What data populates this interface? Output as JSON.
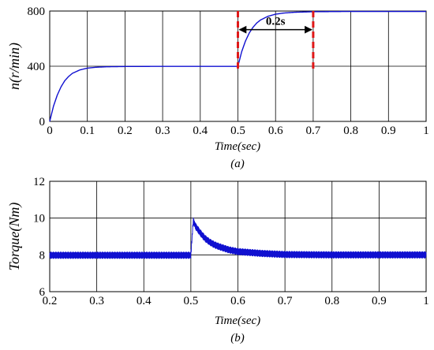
{
  "chart_data": [
    {
      "type": "line",
      "panel_label": "(a)",
      "xlabel": "Time(sec)",
      "ylabel": "n(r/min)",
      "xlim": [
        0,
        1
      ],
      "ylim": [
        0,
        800
      ],
      "xticks": [
        "0",
        "0.1",
        "0.2",
        "0.3",
        "0.4",
        "0.5",
        "0.6",
        "0.7",
        "0.8",
        "0.9",
        "1"
      ],
      "yticks": [
        "0",
        "400",
        "800"
      ],
      "grid": true,
      "series": [
        {
          "color": "#1010d0",
          "x": [
            0,
            0.01,
            0.02,
            0.03,
            0.04,
            0.05,
            0.06,
            0.08,
            0.1,
            0.12,
            0.15,
            0.2,
            0.3,
            0.4,
            0.5,
            0.51,
            0.52,
            0.53,
            0.54,
            0.55,
            0.56,
            0.58,
            0.6,
            0.62,
            0.65,
            0.7,
            0.8,
            0.9,
            1.0
          ],
          "y": [
            0,
            110,
            190,
            250,
            295,
            325,
            348,
            373,
            386,
            392,
            396,
            398,
            399,
            399,
            399,
            505,
            582,
            640,
            682,
            713,
            735,
            762,
            777,
            785,
            791,
            795,
            797,
            797,
            797
          ]
        }
      ],
      "annotations": [
        {
          "type": "vline",
          "x": 0.5,
          "color": "#e01818",
          "style": "dashed"
        },
        {
          "type": "vline",
          "x": 0.7,
          "color": "#e01818",
          "style": "dashed"
        },
        {
          "type": "double-arrow",
          "x_from": 0.5,
          "x_to": 0.7,
          "y": 665,
          "text": "0.2s"
        }
      ]
    },
    {
      "type": "line",
      "panel_label": "(b)",
      "xlabel": "Time(sec)",
      "ylabel": "Torque(Nm)",
      "xlim": [
        0.2,
        1
      ],
      "ylim": [
        6,
        12
      ],
      "xticks": [
        "0.2",
        "0.3",
        "0.4",
        "0.5",
        "0.6",
        "0.7",
        "0.8",
        "0.9",
        "1"
      ],
      "yticks": [
        "6",
        "8",
        "10",
        "12"
      ],
      "grid": true,
      "series": [
        {
          "color": "#1010d0",
          "ripple": 0.18,
          "x": [
            0.2,
            0.3,
            0.4,
            0.499,
            0.5,
            0.505,
            0.51,
            0.52,
            0.53,
            0.54,
            0.55,
            0.56,
            0.58,
            0.6,
            0.65,
            0.7,
            0.8,
            0.9,
            1.0
          ],
          "y": [
            7.98,
            7.98,
            7.98,
            7.98,
            8.0,
            9.85,
            9.55,
            9.2,
            8.9,
            8.7,
            8.55,
            8.45,
            8.28,
            8.18,
            8.08,
            8.02,
            8.0,
            8.0,
            8.0
          ]
        }
      ]
    }
  ]
}
